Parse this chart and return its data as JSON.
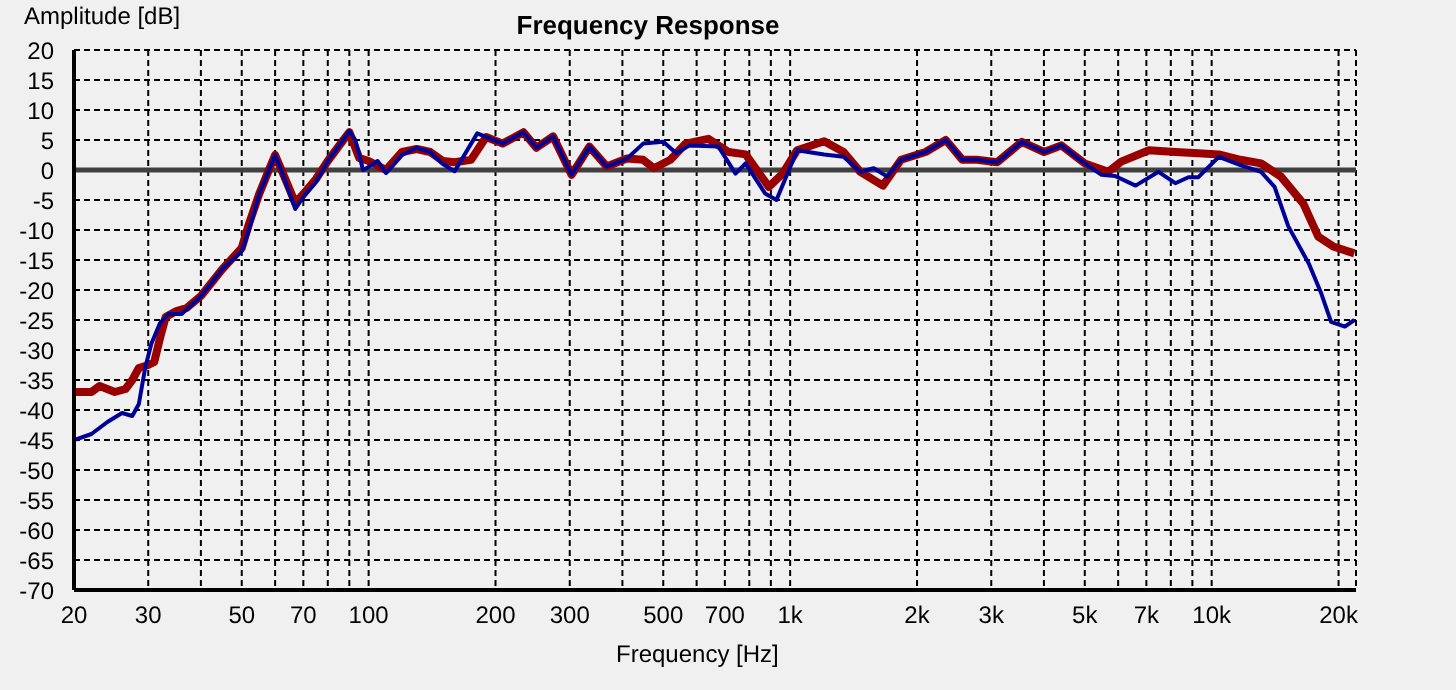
{
  "chart_data": {
    "type": "line",
    "title": "Frequency Response",
    "xlabel": "Frequency [Hz]",
    "ylabel": "Amplitude [dB]",
    "log": "x",
    "grid": true,
    "legend": false,
    "marker": "none",
    "line_style": "solid",
    "xlim": [
      20,
      22000
    ],
    "ylim": [
      -70,
      20
    ],
    "xticks": [
      20,
      30,
      {
        "value": 40,
        "label": null
      },
      50,
      {
        "value": 60,
        "label": null
      },
      70,
      {
        "value": 80,
        "label": null
      },
      {
        "value": 90,
        "label": null
      },
      100,
      200,
      300,
      {
        "value": 400,
        "label": null
      },
      500,
      {
        "value": 600,
        "label": null
      },
      700,
      {
        "value": 800,
        "label": null
      },
      {
        "value": 900,
        "label": null
      },
      {
        "value": 1000,
        "label": "1k"
      },
      {
        "value": 2000,
        "label": "2k"
      },
      {
        "value": 3000,
        "label": "3k"
      },
      {
        "value": 4000,
        "label": null
      },
      {
        "value": 5000,
        "label": "5k"
      },
      {
        "value": 6000,
        "label": null
      },
      {
        "value": 7000,
        "label": "7k"
      },
      {
        "value": 8000,
        "label": null
      },
      {
        "value": 9000,
        "label": null
      },
      {
        "value": 10000,
        "label": "10k"
      },
      {
        "value": 20000,
        "label": "20k"
      }
    ],
    "yticks": [
      -70,
      -65,
      -60,
      -55,
      -50,
      -45,
      -40,
      -35,
      -30,
      -25,
      -20,
      -15,
      -10,
      -5,
      0,
      5,
      10,
      15,
      20
    ],
    "ref_lines": [
      {
        "axis": "y",
        "value": 0,
        "color": "#404040"
      }
    ],
    "series": [
      {
        "color": "#990000",
        "x": [
          20,
          22,
          23,
          25,
          26.5,
          27.5,
          28.5,
          30,
          31,
          32,
          33,
          35,
          37,
          40,
          45,
          50,
          52,
          55,
          58,
          60,
          63,
          67,
          70,
          75,
          80,
          85,
          90,
          95,
          100,
          110,
          120,
          130,
          140,
          150,
          160,
          175,
          190,
          208,
          233,
          250,
          274,
          303,
          334,
          367,
          410,
          448,
          475,
          520,
          565,
          640,
          715,
          784,
          890,
          960,
          1039,
          1204,
          1339,
          1467,
          1660,
          1833,
          2095,
          2340,
          2563,
          2775,
          3100,
          3545,
          4003,
          4397,
          5000,
          5680,
          6100,
          7100,
          8200,
          9300,
          10400,
          11700,
          13100,
          14600,
          16500,
          17900,
          19500,
          21800
        ],
        "values": [
          -37,
          -37,
          -36,
          -37,
          -36.5,
          -35,
          -33,
          -32.5,
          -32,
          -28,
          -24.5,
          -23.5,
          -23,
          -21,
          -16.5,
          -13,
          -9,
          -4,
          0,
          2.5,
          -1,
          -5.5,
          -4,
          -1.5,
          1.5,
          4,
          6.3,
          2,
          1.5,
          0,
          3,
          3.5,
          3,
          1.5,
          1.3,
          1.7,
          5.5,
          4.4,
          6.3,
          3.7,
          5.6,
          -0.8,
          3.9,
          0.6,
          1.9,
          1.7,
          0.3,
          1.7,
          4.4,
          5.2,
          3,
          2.6,
          -2.8,
          -0.6,
          3.3,
          4.8,
          3,
          -0.3,
          -2.6,
          1.7,
          3,
          5,
          1.7,
          1.7,
          1.3,
          4.7,
          3,
          4.1,
          1.1,
          -0.3,
          1.4,
          3.3,
          3,
          2.8,
          2.6,
          1.7,
          1.1,
          -1.1,
          -5.6,
          -11.1,
          -12.8,
          -13.9
        ]
      },
      {
        "color": "#000099",
        "x": [
          20,
          22,
          24,
          26,
          27.5,
          28.5,
          29.5,
          30.5,
          32,
          33.5,
          36,
          40,
          45,
          50,
          52,
          55,
          58,
          60,
          62,
          65,
          67,
          70,
          75,
          80,
          85,
          90,
          93,
          97,
          100,
          105,
          110,
          120,
          130,
          140,
          150,
          160,
          181,
          208,
          233,
          250,
          274,
          303,
          334,
          367,
          410,
          448,
          500,
          537,
          577,
          676,
          742,
          784,
          872,
          928,
          1039,
          1204,
          1339,
          1467,
          1579,
          1701,
          1833,
          2095,
          2340,
          2563,
          2775,
          3100,
          3545,
          4003,
          4397,
          5000,
          5480,
          5900,
          6600,
          7480,
          8200,
          8810,
          9300,
          10400,
          11700,
          13100,
          14100,
          15200,
          17000,
          18200,
          19200,
          20700,
          21800
        ],
        "values": [
          -45,
          -44,
          -42,
          -40.5,
          -41,
          -39,
          -33,
          -29,
          -25.5,
          -24,
          -24,
          -21,
          -16.5,
          -13.5,
          -10,
          -4,
          0,
          2.5,
          0,
          -4,
          -6.5,
          -4.5,
          -2,
          1.5,
          4,
          6.5,
          5,
          0,
          0.5,
          1.5,
          -0.5,
          2.5,
          3.7,
          3,
          1,
          -0.2,
          6.1,
          4.4,
          6.3,
          3.7,
          5.6,
          -0.8,
          3.9,
          0.6,
          1.9,
          4.4,
          4.7,
          2.8,
          4.1,
          3.9,
          -0.6,
          1.1,
          -3.9,
          -5,
          3.3,
          2.6,
          2.2,
          -0.3,
          0.3,
          -1.1,
          1.7,
          3,
          5,
          1.7,
          1.7,
          1.3,
          4.7,
          3,
          4.1,
          1.1,
          -0.8,
          -1,
          -2.6,
          -0.3,
          -2.2,
          -1.2,
          -1.2,
          2.2,
          0.8,
          -0.3,
          -2.8,
          -9.4,
          -15.6,
          -20.6,
          -25.3,
          -26.1,
          -25
        ]
      }
    ]
  }
}
